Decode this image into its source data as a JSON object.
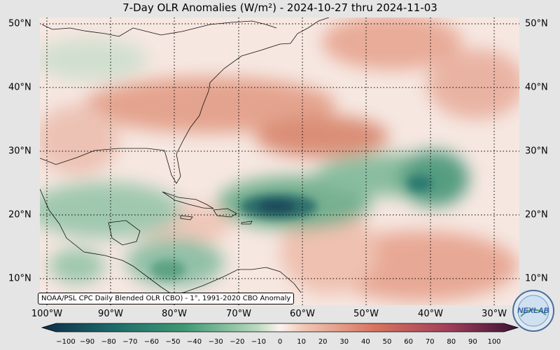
{
  "title": "7-Day OLR Anomalies (W/m²) - 2024-10-27 thru 2024-11-03",
  "source_note": "NOAA/PSL CPC Daily Blended OLR (CBO) - 1°, 1991-2020 CBO Anomaly",
  "logo_text": "NEXLAB",
  "lat_labels": [
    "50°N",
    "40°N",
    "30°N",
    "20°N",
    "10°N"
  ],
  "lon_labels": [
    "100°W",
    "90°W",
    "80°W",
    "70°W",
    "60°W",
    "50°W",
    "40°W",
    "30°W"
  ],
  "colorbar": {
    "ticks": [
      "−100",
      "−90",
      "−80",
      "−70",
      "−60",
      "−50",
      "−40",
      "−30",
      "−20",
      "−10",
      "0",
      "10",
      "20",
      "30",
      "40",
      "50",
      "60",
      "70",
      "80",
      "90",
      "100"
    ],
    "colors": {
      "strong_negative": "#0d2d4a",
      "negative": "#2e8a68",
      "neutral": "#fbf3ee",
      "positive": "#d46a55",
      "strong_positive": "#5a1848"
    }
  },
  "map": {
    "extent_lon": [
      -101,
      -26
    ],
    "extent_lat": [
      6,
      51
    ],
    "grid": true
  }
}
